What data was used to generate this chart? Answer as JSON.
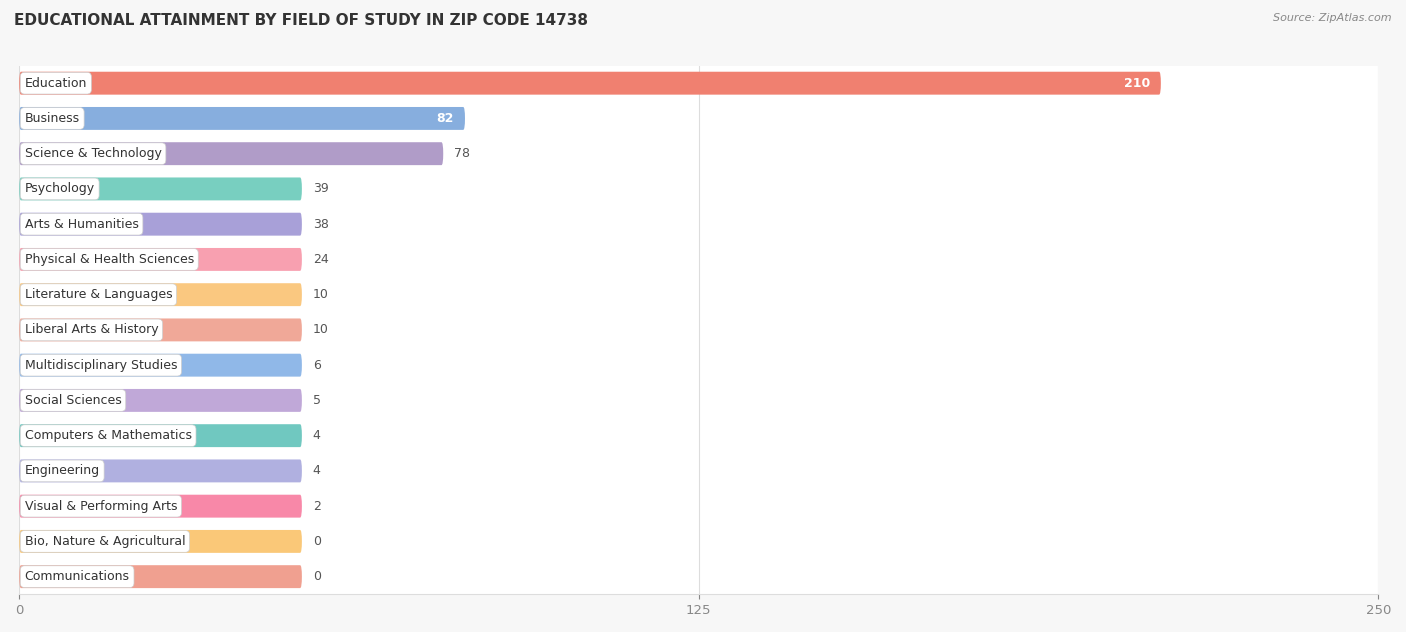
{
  "title": "EDUCATIONAL ATTAINMENT BY FIELD OF STUDY IN ZIP CODE 14738",
  "source": "Source: ZipAtlas.com",
  "categories": [
    "Education",
    "Business",
    "Science & Technology",
    "Psychology",
    "Arts & Humanities",
    "Physical & Health Sciences",
    "Literature & Languages",
    "Liberal Arts & History",
    "Multidisciplinary Studies",
    "Social Sciences",
    "Computers & Mathematics",
    "Engineering",
    "Visual & Performing Arts",
    "Bio, Nature & Agricultural",
    "Communications"
  ],
  "values": [
    210,
    82,
    78,
    39,
    38,
    24,
    10,
    10,
    6,
    5,
    4,
    4,
    2,
    0,
    0
  ],
  "bar_colors": [
    "#F08070",
    "#87AEDE",
    "#B09CC8",
    "#78CFC0",
    "#A8A0D8",
    "#F8A0B0",
    "#FAC880",
    "#F0A898",
    "#90B8E8",
    "#C0A8D8",
    "#70C8C0",
    "#B0B0E0",
    "#F888A8",
    "#FAC878",
    "#F0A090"
  ],
  "xlim": [
    0,
    250
  ],
  "xticks": [
    0,
    125,
    250
  ],
  "background_color": "#f7f7f7",
  "bar_row_color": "#ffffff",
  "title_fontsize": 11,
  "label_fontsize": 9,
  "value_fontsize": 9,
  "bar_height": 0.65,
  "min_bar_width": 52
}
